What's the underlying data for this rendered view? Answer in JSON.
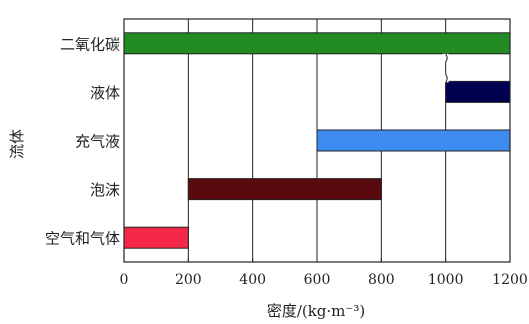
{
  "chart_data": {
    "type": "bar",
    "orientation": "horizontal-range",
    "title": "",
    "xlabel": "密度/(kg·m⁻³)",
    "ylabel": "流体",
    "xlim": [
      0,
      1200
    ],
    "xticks": [
      "0",
      "200",
      "400",
      "600",
      "800",
      "1000",
      "1200"
    ],
    "grid": true,
    "axis_break_at": 1000,
    "categories": [
      "二氧化碳",
      "液体",
      "充气液",
      "泡沫",
      "空气和气体"
    ],
    "ranges": [
      {
        "category": "二氧化碳",
        "start": 0,
        "end": 1200,
        "color": "#228b22"
      },
      {
        "category": "液体",
        "start": 1000,
        "end": 1200,
        "color": "#000050"
      },
      {
        "category": "充气液",
        "start": 600,
        "end": 1200,
        "color": "#3f8cf0"
      },
      {
        "category": "泡沫",
        "start": 200,
        "end": 800,
        "color": "#5a0a0f"
      },
      {
        "category": "空气和气体",
        "start": 0,
        "end": 200,
        "color": "#f5284a"
      }
    ]
  }
}
